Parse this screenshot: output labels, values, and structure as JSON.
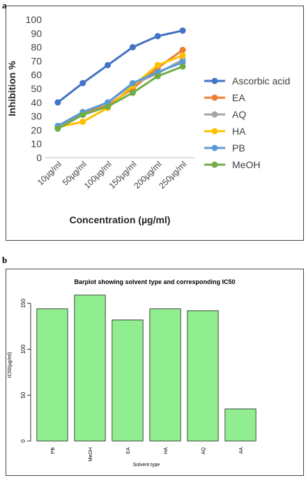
{
  "panels": {
    "a": "a",
    "b": "b"
  },
  "chart_data": [
    {
      "type": "line",
      "title": "",
      "xlabel": "Concentration (µg/ml)",
      "ylabel": "Inhibition %",
      "categories": [
        "10µg/ml",
        "50µg/ml",
        "100µg/ml",
        "150µg/ml",
        "200µg/ml",
        "250µg/ml"
      ],
      "ylim": [
        0,
        100
      ],
      "yticks": [
        0,
        10,
        20,
        30,
        40,
        50,
        60,
        70,
        80,
        90,
        100
      ],
      "grid": false,
      "legend_position": "right",
      "series": [
        {
          "name": "Ascorbic acid",
          "color": "#4472C4",
          "values": [
            40,
            54,
            67,
            80,
            88,
            92
          ]
        },
        {
          "name": "EA",
          "color": "#ED7D31",
          "values": [
            23,
            32,
            38,
            50,
            65,
            78
          ]
        },
        {
          "name": "AQ",
          "color": "#A5A5A5",
          "values": [
            23,
            33,
            40,
            53,
            61,
            71
          ]
        },
        {
          "name": "HA",
          "color": "#FFC000",
          "values": [
            22,
            26,
            36,
            52,
            67,
            74
          ]
        },
        {
          "name": "PB",
          "color": "#5B9BD5",
          "values": [
            23,
            33,
            40,
            54,
            62,
            69
          ]
        },
        {
          "name": "MeOH",
          "color": "#70AD47",
          "values": [
            21,
            31,
            37,
            47,
            59,
            66
          ]
        }
      ]
    },
    {
      "type": "bar",
      "title": "Barplot showing solvent type and corresponding IC50",
      "xlabel": "Solvent type",
      "ylabel": "IC50(µg/ml)",
      "categories": [
        "PB",
        "MeOH",
        "EA",
        "HA",
        "AQ",
        "AA"
      ],
      "values": [
        144,
        159,
        132,
        144,
        142,
        35
      ],
      "ylim": [
        0,
        165
      ],
      "yticks": [
        0,
        50,
        100,
        150
      ],
      "bar_color": "#90EE90",
      "grid": false
    }
  ]
}
